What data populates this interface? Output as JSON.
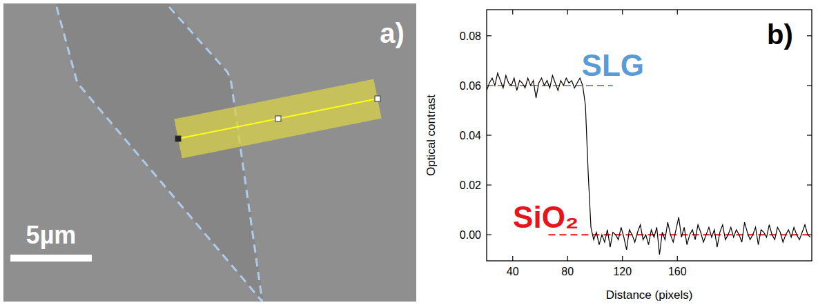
{
  "panel_a": {
    "label": "a)",
    "scale_bar": "5µm"
  },
  "chart_data": {
    "type": "line",
    "panel_label": "b)",
    "x_label": "Distance (pixels)",
    "y_label": "Optical contrast",
    "xlim": [
      21,
      258
    ],
    "ylim": [
      -0.0105,
      0.0905
    ],
    "xticks": [
      40,
      80,
      120,
      160
    ],
    "yticks": [
      {
        "value": 0,
        "label": "0.00"
      },
      {
        "value": 0.02,
        "label": "0.02"
      },
      {
        "value": 0.04,
        "label": "0.04"
      },
      {
        "value": 0.06,
        "label": "0.06"
      },
      {
        "value": 0.08,
        "label": "0.08"
      }
    ],
    "x": [
      21,
      23,
      25,
      27,
      29,
      31,
      33,
      35,
      37,
      39,
      41,
      43,
      45,
      47,
      49,
      51,
      53,
      55,
      57,
      59,
      61,
      63,
      65,
      67,
      69,
      71,
      73,
      75,
      77,
      79,
      81,
      83,
      85,
      87,
      89,
      91,
      93,
      95,
      97,
      99,
      101,
      103,
      105,
      107,
      109,
      111,
      113,
      115,
      117,
      119,
      121,
      123,
      125,
      127,
      129,
      131,
      133,
      135,
      137,
      139,
      141,
      143,
      145,
      147,
      149,
      151,
      153,
      155,
      157,
      159,
      161,
      163,
      165,
      167,
      169,
      171,
      173,
      175,
      177,
      179,
      181,
      183,
      185,
      187,
      189,
      191,
      193,
      195,
      197,
      199,
      201,
      203,
      205,
      207,
      209,
      211,
      213,
      215,
      217,
      219,
      221,
      223,
      225,
      227,
      229,
      231,
      233,
      235,
      237,
      239,
      241,
      243,
      245,
      247,
      249,
      251,
      253,
      255,
      257
    ],
    "series": [
      {
        "color": "#000000",
        "line_style": "solid",
        "values": [
          0.058,
          0.061,
          0.063,
          0.06,
          0.065,
          0.062,
          0.059,
          0.064,
          0.061,
          0.06,
          0.063,
          0.058,
          0.062,
          0.061,
          0.059,
          0.063,
          0.06,
          0.062,
          0.055,
          0.061,
          0.063,
          0.06,
          0.062,
          0.059,
          0.064,
          0.061,
          0.058,
          0.062,
          0.06,
          0.063,
          0.061,
          0.062,
          0.059,
          0.061,
          0.063,
          0.06,
          0.052,
          0.025,
          0.003,
          -0.002,
          0.001,
          -0.004,
          0.0,
          -0.003,
          0.002,
          -0.005,
          0.001,
          0.0,
          -0.002,
          0.003,
          -0.001,
          -0.006,
          0.002,
          0.0,
          -0.003,
          0.001,
          0.004,
          -0.002,
          0.0,
          -0.004,
          0.002,
          -0.001,
          0.003,
          -0.008,
          0.001,
          -0.002,
          0.005,
          0.0,
          -0.003,
          0.002,
          0.007,
          -0.001,
          0.003,
          -0.004,
          0.0,
          0.002,
          -0.002,
          0.004,
          0.001,
          -0.003,
          0.0,
          0.003,
          -0.001,
          0.002,
          -0.005,
          0.001,
          0.004,
          -0.002,
          0.0,
          0.003,
          -0.001,
          0.002,
          0.0,
          -0.003,
          0.005,
          0.001,
          -0.002,
          0.0,
          0.003,
          -0.004,
          0.002,
          0.001,
          -0.001,
          0.004,
          0.0,
          -0.002,
          0.003,
          0.001,
          -0.003,
          0.0,
          0.002,
          -0.001,
          0.003,
          0.0,
          -0.002,
          0.001,
          0.004,
          0.0,
          -0.001
        ]
      }
    ],
    "annotations": [
      {
        "text": "SLG",
        "color": "#5b9bd5",
        "y": 0.06,
        "x_from": 21,
        "x_to": 113,
        "line_style": "dashed"
      },
      {
        "text": "SiO₂",
        "color": "#e8141b",
        "y": 0,
        "x_from": 66,
        "x_to": 258,
        "line_style": "dashed"
      }
    ]
  }
}
